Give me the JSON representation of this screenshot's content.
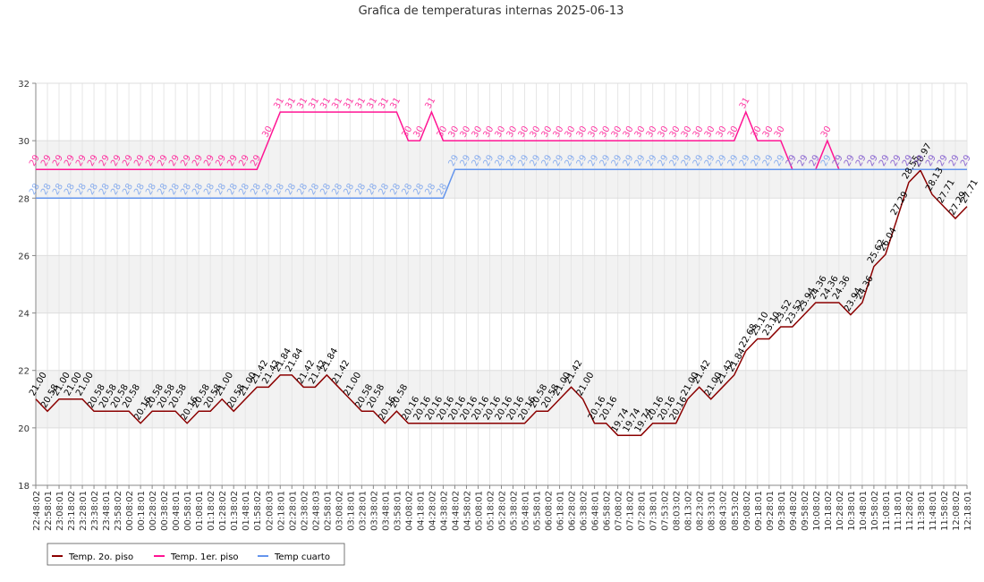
{
  "chart_data": {
    "type": "line",
    "title": "Grafica de temperaturas internas 2025-06-13",
    "xlabel": "",
    "ylabel": "",
    "ylim": [
      18,
      32
    ],
    "yticks": [
      18,
      20,
      22,
      24,
      26,
      28,
      30,
      32
    ],
    "grid": true,
    "legend_position": "bottom-left",
    "x": [
      "22:48:02",
      "22:58:01",
      "23:08:01",
      "23:18:02",
      "23:28:01",
      "23:38:02",
      "23:48:01",
      "23:58:02",
      "00:08:02",
      "00:18:01",
      "00:28:02",
      "00:38:02",
      "00:48:01",
      "00:58:01",
      "01:08:01",
      "01:18:02",
      "01:28:02",
      "01:38:02",
      "01:48:01",
      "01:58:02",
      "02:08:03",
      "02:18:01",
      "02:28:01",
      "02:38:02",
      "02:48:03",
      "02:58:01",
      "03:08:02",
      "03:18:01",
      "03:28:01",
      "03:38:02",
      "03:48:01",
      "03:58:01",
      "04:08:02",
      "04:18:01",
      "04:28:02",
      "04:38:02",
      "04:48:02",
      "04:58:02",
      "05:08:01",
      "05:18:02",
      "05:28:02",
      "05:38:02",
      "05:48:01",
      "05:58:01",
      "06:08:02",
      "06:18:01",
      "06:28:02",
      "06:38:02",
      "06:48:01",
      "06:58:02",
      "07:08:02",
      "07:18:02",
      "07:28:01",
      "07:38:01",
      "07:53:02",
      "08:03:02",
      "08:13:02",
      "08:23:02",
      "08:33:01",
      "08:43:02",
      "08:53:02",
      "09:08:02",
      "09:18:01",
      "09:28:01",
      "09:38:01",
      "09:48:02",
      "09:58:02",
      "10:08:02",
      "10:18:02",
      "10:28:02",
      "10:38:01",
      "10:48:01",
      "10:58:02",
      "11:08:01",
      "11:18:01",
      "11:28:02",
      "11:38:01",
      "11:48:01",
      "11:58:02",
      "12:08:02",
      "12:18:01"
    ],
    "series": [
      {
        "name": "Temp. 2o. piso",
        "color": "#8b0000",
        "values": [
          21.0,
          20.58,
          21.0,
          21.0,
          21.0,
          20.58,
          20.58,
          20.58,
          20.58,
          20.16,
          20.58,
          20.58,
          20.58,
          20.16,
          20.58,
          20.58,
          21.0,
          20.58,
          21.0,
          21.42,
          21.42,
          21.84,
          21.84,
          21.42,
          21.42,
          21.84,
          21.42,
          21.0,
          20.58,
          20.58,
          20.16,
          20.58,
          20.16,
          20.16,
          20.16,
          20.16,
          20.16,
          20.16,
          20.16,
          20.16,
          20.16,
          20.16,
          20.16,
          20.58,
          20.58,
          21.0,
          21.42,
          21.0,
          20.16,
          20.16,
          19.74,
          19.74,
          19.74,
          20.16,
          20.16,
          20.16,
          21.0,
          21.42,
          21.0,
          21.42,
          21.84,
          22.68,
          23.1,
          23.1,
          23.52,
          23.52,
          23.94,
          24.36,
          24.36,
          24.36,
          23.94,
          24.36,
          25.62,
          26.04,
          27.29,
          28.55,
          28.97,
          28.13,
          27.71,
          27.29,
          27.71
        ]
      },
      {
        "name": "Temp. 1er. piso",
        "color": "#ff1493",
        "values": [
          29,
          29,
          29,
          29,
          29,
          29,
          29,
          29,
          29,
          29,
          29,
          29,
          29,
          29,
          29,
          29,
          29,
          29,
          29,
          29,
          30,
          31,
          31,
          31,
          31,
          31,
          31,
          31,
          31,
          31,
          31,
          31,
          30,
          30,
          31,
          30,
          30,
          30,
          30,
          30,
          30,
          30,
          30,
          30,
          30,
          30,
          30,
          30,
          30,
          30,
          30,
          30,
          30,
          30,
          30,
          30,
          30,
          30,
          30,
          30,
          30,
          31,
          30,
          30,
          30,
          29,
          29,
          29,
          30,
          29,
          29,
          29,
          29,
          29,
          29,
          29,
          29,
          29,
          29,
          29,
          29
        ]
      },
      {
        "name": "Temp cuarto",
        "color": "#6495ed",
        "values": [
          28,
          28,
          28,
          28,
          28,
          28,
          28,
          28,
          28,
          28,
          28,
          28,
          28,
          28,
          28,
          28,
          28,
          28,
          28,
          28,
          28,
          28,
          28,
          28,
          28,
          28,
          28,
          28,
          28,
          28,
          28,
          28,
          28,
          28,
          28,
          28,
          29,
          29,
          29,
          29,
          29,
          29,
          29,
          29,
          29,
          29,
          29,
          29,
          29,
          29,
          29,
          29,
          29,
          29,
          29,
          29,
          29,
          29,
          29,
          29,
          29,
          29,
          29,
          29,
          29,
          29,
          29,
          29,
          29,
          29,
          29,
          29,
          29,
          29,
          29,
          29,
          29,
          29,
          29,
          29,
          29
        ]
      }
    ]
  }
}
